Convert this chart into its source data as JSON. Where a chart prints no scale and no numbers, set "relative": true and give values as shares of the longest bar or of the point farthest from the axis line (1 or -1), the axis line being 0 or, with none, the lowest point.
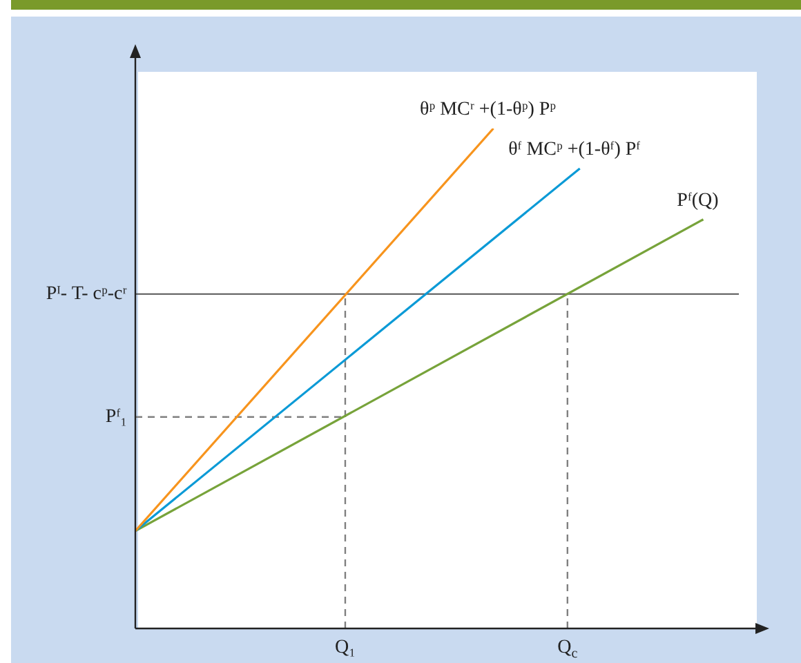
{
  "chart_data": {
    "type": "line",
    "marker": "none",
    "relative": true,
    "categories": [
      null,
      null,
      null,
      null,
      null,
      null,
      null,
      null,
      null,
      null,
      null,
      null,
      null,
      null,
      null,
      null,
      null,
      "Q₁",
      null,
      null,
      null,
      null,
      null,
      null,
      null,
      null,
      null,
      null,
      null,
      null,
      null,
      null,
      null,
      null,
      null,
      "Q$_{c}$",
      null,
      null,
      null,
      null,
      null,
      null,
      null,
      null,
      null,
      null,
      null,
      null,
      null,
      null,
      null
    ],
    "ref_lines": [
      {
        "axis": "y",
        "value": 0.669,
        "label": "Pᴵ- T- cᵖ-cʳ",
        "color": "#555555",
        "line_style": "solid"
      }
    ],
    "series": [
      {
        "name": "θᵖ MCʳ +(1-θᵖ) Pᵖ",
        "color": "#f7941d",
        "values": [
          0.195,
          null,
          null,
          null,
          null,
          null,
          null,
          null,
          null,
          null,
          null,
          null,
          null,
          null,
          null,
          null,
          null,
          null,
          null,
          null,
          null,
          null,
          null,
          null,
          null,
          null,
          null,
          null,
          null,
          1,
          null,
          null,
          null,
          null,
          null,
          null,
          null,
          null,
          null,
          null,
          null,
          null,
          null,
          null,
          null,
          null,
          null,
          null,
          null,
          null,
          null
        ]
      },
      {
        "name": "θᶠ MCᵖ +(1-θᶠ) Pᶠ",
        "color": "#0b9ad6",
        "values": [
          0.195,
          null,
          null,
          null,
          null,
          null,
          null,
          null,
          null,
          null,
          null,
          null,
          null,
          null,
          null,
          null,
          null,
          null,
          null,
          null,
          null,
          null,
          null,
          null,
          null,
          null,
          null,
          null,
          null,
          null,
          null,
          null,
          null,
          null,
          null,
          null,
          0.92,
          null,
          null,
          null,
          null,
          null,
          null,
          null,
          null,
          null,
          null,
          null,
          null,
          null,
          null
        ]
      },
      {
        "name": "Pᶠ(Q)",
        "color": "#77a33a",
        "values": [
          0.195,
          null,
          null,
          null,
          null,
          null,
          null,
          null,
          null,
          null,
          null,
          null,
          null,
          null,
          null,
          null,
          null,
          null,
          null,
          null,
          null,
          null,
          null,
          null,
          null,
          null,
          null,
          null,
          null,
          null,
          null,
          null,
          null,
          null,
          null,
          null,
          null,
          null,
          null,
          null,
          null,
          null,
          null,
          null,
          null,
          null,
          0.818,
          null,
          null,
          null,
          null
        ]
      },
      {
        "name": "Pᶠ₁",
        "color": "#808080",
        "line_style": "dashed",
        "values": [
          0.423,
          null,
          null,
          null,
          null,
          null,
          null,
          null,
          null,
          null,
          null,
          null,
          null,
          null,
          null,
          null,
          null,
          0.423,
          null,
          null,
          null,
          null,
          null,
          null,
          null,
          null,
          null,
          null,
          null,
          null,
          null,
          null,
          null,
          null,
          null,
          null,
          null,
          null,
          null,
          null,
          null,
          null,
          null,
          null,
          null,
          null,
          null,
          null,
          null,
          null,
          null
        ]
      },
      {
        "color": "#808080",
        "line_style": "dashed",
        "x": [
          "Q₁",
          "Q₁"
        ],
        "values": [
          0,
          0.669
        ]
      },
      {
        "color": "#808080",
        "line_style": "dashed",
        "x": [
          "Q$_{c}$",
          "Q$_{c}$"
        ],
        "values": [
          0,
          0.669
        ]
      }
    ]
  }
}
